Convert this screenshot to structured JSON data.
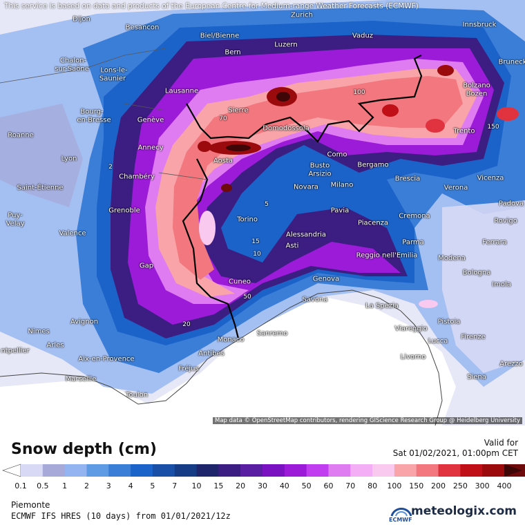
{
  "map": {
    "notice": "This service is based on data and products of the European Centre for Medium-range Weather Forecasts (ECMWF)",
    "attribution": "Map data © OpenStreetMap contributors, rendering GIScience Research Group @ Heidelberg University",
    "cities": [
      {
        "name": "Dijon"
      },
      {
        "name": "Besancon"
      },
      {
        "name": "Biel/Bienne"
      },
      {
        "name": "Zurich"
      },
      {
        "name": "Vaduz"
      },
      {
        "name": "Innsbruck"
      },
      {
        "name": "Luzern"
      },
      {
        "name": "Bern"
      },
      {
        "name": "Chalon-"
      },
      {
        "name": "sur-Saône"
      },
      {
        "name": "Lons-le-"
      },
      {
        "name": "Saunier"
      },
      {
        "name": "Lausanne"
      },
      {
        "name": "Bourg-"
      },
      {
        "name": "en-Bresse"
      },
      {
        "name": "Genève"
      },
      {
        "name": "Sierre"
      },
      {
        "name": "Domodossola"
      },
      {
        "name": "Bolzano"
      },
      {
        "name": "Bozen"
      },
      {
        "name": "Trento"
      },
      {
        "name": "Bruneck"
      },
      {
        "name": "Roanne"
      },
      {
        "name": "Annecy"
      },
      {
        "name": "Aosta"
      },
      {
        "name": "Como"
      },
      {
        "name": "Busto"
      },
      {
        "name": "Arsizio"
      },
      {
        "name": "Bergamo"
      },
      {
        "name": "Lyon"
      },
      {
        "name": "Chambéry"
      },
      {
        "name": "Saint-Étienne"
      },
      {
        "name": "Novara"
      },
      {
        "name": "Milano"
      },
      {
        "name": "Brescia"
      },
      {
        "name": "Verona"
      },
      {
        "name": "Vicenza"
      },
      {
        "name": "Padova"
      },
      {
        "name": "Puy-"
      },
      {
        "name": "Velay"
      },
      {
        "name": "Grenoble"
      },
      {
        "name": "Torino"
      },
      {
        "name": "Pavia"
      },
      {
        "name": "Piacenza"
      },
      {
        "name": "Cremona"
      },
      {
        "name": "Rovigo"
      },
      {
        "name": "Valence"
      },
      {
        "name": "Alessandria"
      },
      {
        "name": "Asti"
      },
      {
        "name": "Parma"
      },
      {
        "name": "Ferrara"
      },
      {
        "name": "Reggio nell'Emilia"
      },
      {
        "name": "Modena"
      },
      {
        "name": "Gap"
      },
      {
        "name": "Bologna"
      },
      {
        "name": "Cuneo"
      },
      {
        "name": "Genova"
      },
      {
        "name": "Savona"
      },
      {
        "name": "Imola"
      },
      {
        "name": "La Spezia"
      },
      {
        "name": "Avignon"
      },
      {
        "name": "Nimes"
      },
      {
        "name": "Arles"
      },
      {
        "name": "Monaco"
      },
      {
        "name": "Sanremo"
      },
      {
        "name": "Viareggio"
      },
      {
        "name": "Pistoia"
      },
      {
        "name": "Lucca"
      },
      {
        "name": "Firenze"
      },
      {
        "name": "ntpellier"
      },
      {
        "name": "Antibes"
      },
      {
        "name": "Aix-en-Provence"
      },
      {
        "name": "Fréjus"
      },
      {
        "name": "Livorno"
      },
      {
        "name": "Arezzo"
      },
      {
        "name": "Marseille"
      },
      {
        "name": "Siena"
      },
      {
        "name": "Toulon"
      }
    ],
    "contour_labels": [
      "2",
      "5",
      "10",
      "15",
      "20",
      "50",
      "70",
      "100",
      "150"
    ]
  },
  "legend": {
    "title": "Snow depth (cm)",
    "valid_label": "Valid for",
    "valid_time": "Sat 01/02/2021, 01:00pm CET",
    "ticks": [
      "0.1",
      "0.5",
      "1",
      "2",
      "3",
      "4",
      "5",
      "7",
      "10",
      "15",
      "20",
      "30",
      "40",
      "50",
      "60",
      "70",
      "80",
      "100",
      "150",
      "200",
      "250",
      "300",
      "400"
    ],
    "colors": [
      "#d7d9f5",
      "#a7aad9",
      "#93b4f0",
      "#5f9be5",
      "#3b7ed8",
      "#1c63c9",
      "#1a4fa8",
      "#153c85",
      "#1e256b",
      "#3c1e83",
      "#5a1ea2",
      "#7b12c1",
      "#9c1bd9",
      "#c03df0",
      "#e07cf2",
      "#f3aef6",
      "#f9c9ef",
      "#f8a4a8",
      "#f2777e",
      "#e1323f",
      "#c00f16",
      "#9b0a0d",
      "#6e0a0b",
      "#3e0606"
    ]
  },
  "footer": {
    "region": "Piemonte",
    "model": "ECMWF IFS HRES (10 days) from 01/01/2021/12z",
    "ecmwf_text": "ECMWF",
    "brand": "meteologix.com"
  }
}
